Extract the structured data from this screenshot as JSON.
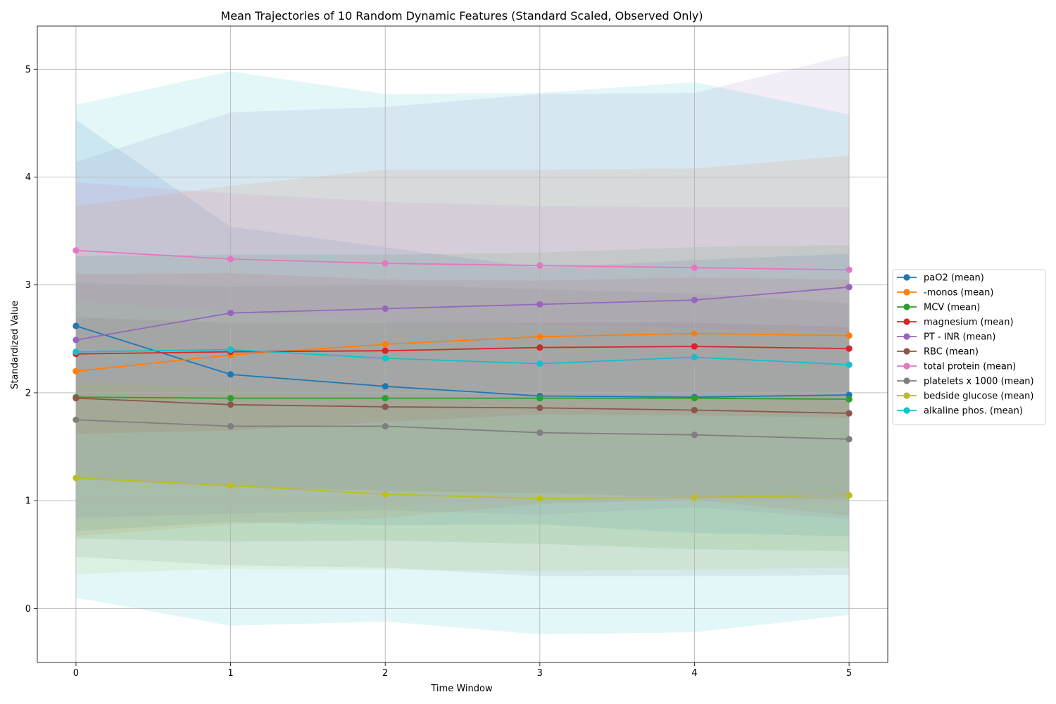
{
  "chart_data": {
    "type": "line",
    "title": "Mean Trajectories of 10 Random Dynamic Features (Standard Scaled, Observed Only)",
    "xlabel": "Time Window",
    "ylabel": "Standardized Value",
    "x": [
      0,
      1,
      2,
      3,
      4,
      5
    ],
    "xlim": [
      -0.25,
      5.25
    ],
    "ylim": [
      -0.5,
      5.4
    ],
    "xticks": [
      "0",
      "1",
      "2",
      "3",
      "4",
      "5"
    ],
    "yticks": [
      "0",
      "1",
      "2",
      "3",
      "4",
      "5"
    ],
    "grid": true,
    "legend_position": "center-right, outside plot",
    "band_opacity": 0.12,
    "series": [
      {
        "name": "paO2 (mean)",
        "color": "#1f77b4",
        "values": [
          2.62,
          2.17,
          2.06,
          1.97,
          1.96,
          1.98
        ],
        "upper": [
          4.53,
          3.54,
          3.35,
          3.16,
          3.23,
          3.29
        ],
        "lower": [
          0.72,
          0.8,
          0.77,
          0.78,
          0.7,
          0.67
        ]
      },
      {
        "name": "-monos (mean)",
        "color": "#ff7f0e",
        "values": [
          2.2,
          2.35,
          2.45,
          2.52,
          2.55,
          2.53
        ],
        "upper": [
          3.73,
          3.92,
          4.07,
          4.07,
          4.08,
          4.2
        ],
        "lower": [
          0.67,
          0.78,
          0.84,
          0.97,
          1.01,
          0.86
        ]
      },
      {
        "name": "MCV (mean)",
        "color": "#2ca02c",
        "values": [
          1.96,
          1.95,
          1.95,
          1.95,
          1.95,
          1.94
        ],
        "upper": [
          3.27,
          3.28,
          3.28,
          3.3,
          3.35,
          3.37
        ],
        "lower": [
          0.65,
          0.62,
          0.63,
          0.6,
          0.55,
          0.53
        ]
      },
      {
        "name": "magnesium (mean)",
        "color": "#d62728",
        "values": [
          2.36,
          2.38,
          2.39,
          2.42,
          2.43,
          2.41
        ],
        "upper": [
          3.1,
          3.11,
          3.05,
          3.04,
          3.07,
          3.05
        ],
        "lower": [
          1.62,
          1.65,
          1.73,
          1.8,
          1.79,
          1.77
        ]
      },
      {
        "name": "PT - INR (mean)",
        "color": "#9467bd",
        "values": [
          2.49,
          2.74,
          2.78,
          2.82,
          2.86,
          2.98
        ],
        "upper": [
          4.14,
          4.6,
          4.65,
          4.77,
          4.78,
          5.13
        ],
        "lower": [
          0.84,
          0.88,
          0.91,
          0.87,
          0.94,
          0.83
        ]
      },
      {
        "name": "RBC (mean)",
        "color": "#8c564b",
        "values": [
          1.95,
          1.89,
          1.87,
          1.86,
          1.84,
          1.81
        ],
        "upper": [
          2.7,
          2.65,
          2.65,
          2.65,
          2.65,
          2.61
        ],
        "lower": [
          1.2,
          1.13,
          1.09,
          1.07,
          1.03,
          1.01
        ]
      },
      {
        "name": "total protein (mean)",
        "color": "#e377c2",
        "values": [
          3.32,
          3.24,
          3.2,
          3.18,
          3.16,
          3.14
        ],
        "upper": [
          3.95,
          3.85,
          3.77,
          3.73,
          3.72,
          3.72
        ],
        "lower": [
          2.85,
          2.75,
          2.66,
          2.63,
          2.6,
          2.56
        ]
      },
      {
        "name": "platelets x 1000 (mean)",
        "color": "#7f7f7f",
        "values": [
          1.75,
          1.69,
          1.69,
          1.63,
          1.61,
          1.57
        ],
        "upper": [
          3.02,
          2.98,
          3.0,
          2.96,
          2.92,
          2.83
        ],
        "lower": [
          0.48,
          0.4,
          0.38,
          0.3,
          0.3,
          0.31
        ]
      },
      {
        "name": "bedside glucose (mean)",
        "color": "#bcbd22",
        "values": [
          1.21,
          1.14,
          1.06,
          1.02,
          1.03,
          1.05
        ],
        "upper": [
          2.1,
          2.04,
          1.96,
          1.93,
          1.95,
          1.97
        ],
        "lower": [
          0.32,
          0.37,
          0.36,
          0.35,
          0.36,
          0.38
        ]
      },
      {
        "name": "alkaline phos. (mean)",
        "color": "#17becf",
        "values": [
          2.38,
          2.4,
          2.32,
          2.27,
          2.33,
          2.26
        ],
        "upper": [
          4.67,
          4.98,
          4.77,
          4.78,
          4.88,
          4.58
        ],
        "lower": [
          0.1,
          -0.16,
          -0.12,
          -0.24,
          -0.22,
          -0.06
        ]
      }
    ]
  }
}
